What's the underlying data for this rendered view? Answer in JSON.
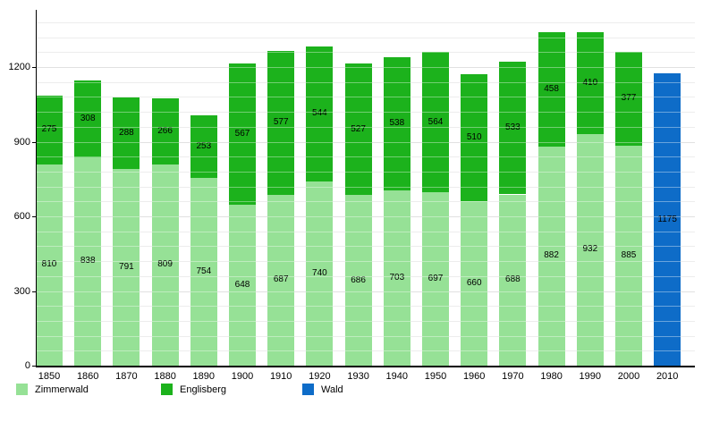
{
  "chart_data": {
    "type": "bar",
    "stacked": true,
    "title": "",
    "xlabel": "",
    "ylabel": "",
    "categories": [
      "1850",
      "1860",
      "1870",
      "1880",
      "1890",
      "1900",
      "1910",
      "1920",
      "1930",
      "1940",
      "1950",
      "1960",
      "1970",
      "1980",
      "1990",
      "2000",
      "2010"
    ],
    "series": [
      {
        "name": "Zimmerwald",
        "color": "#96e196",
        "values": [
          810,
          838,
          791,
          809,
          754,
          648,
          687,
          740,
          686,
          703,
          697,
          660,
          688,
          882,
          932,
          885,
          null
        ]
      },
      {
        "name": "Englisberg",
        "color": "#1cb21c",
        "values": [
          275,
          308,
          288,
          266,
          253,
          567,
          577,
          544,
          527,
          538,
          564,
          510,
          533,
          458,
          410,
          377,
          null
        ]
      },
      {
        "name": "Wald",
        "color": "#0e6cc8",
        "values": [
          null,
          null,
          null,
          null,
          null,
          null,
          null,
          null,
          null,
          null,
          null,
          null,
          null,
          null,
          null,
          null,
          1175
        ]
      }
    ],
    "y_ticks": [
      "0",
      "300",
      "600",
      "900",
      "1200"
    ],
    "ylim": [
      0,
      1430
    ],
    "grid_step": 60,
    "grid": true,
    "legend_position": "bottom",
    "legend": [
      "Zimmerwald",
      "Englisberg",
      "Wald"
    ]
  }
}
